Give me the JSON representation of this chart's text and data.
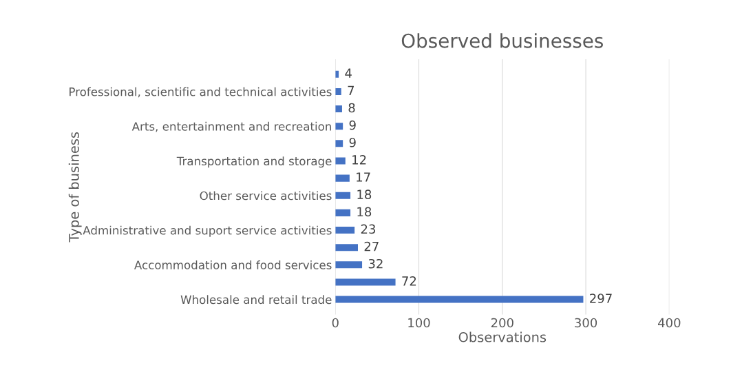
{
  "chart_data": {
    "type": "bar",
    "orientation": "horizontal",
    "title": "Observed businesses",
    "xlabel": "Observations",
    "ylabel": "Type of business",
    "categories": [
      null,
      "Professional, scientific and technical activities",
      null,
      "Arts, entertainment and recreation",
      null,
      "Transportation and storage",
      null,
      "Other service activities",
      null,
      "Administrative and suport service activities",
      null,
      "Accommodation and food services",
      null,
      "Wholesale and retail trade"
    ],
    "values": [
      4,
      7,
      8,
      9,
      9,
      12,
      17,
      18,
      18,
      23,
      27,
      32,
      72,
      297
    ],
    "color": "#4472c4",
    "data_labels": true,
    "xlim": [
      0,
      400
    ],
    "xticks": [
      0,
      100,
      200,
      300,
      400
    ],
    "grid": "x",
    "legend": false
  }
}
